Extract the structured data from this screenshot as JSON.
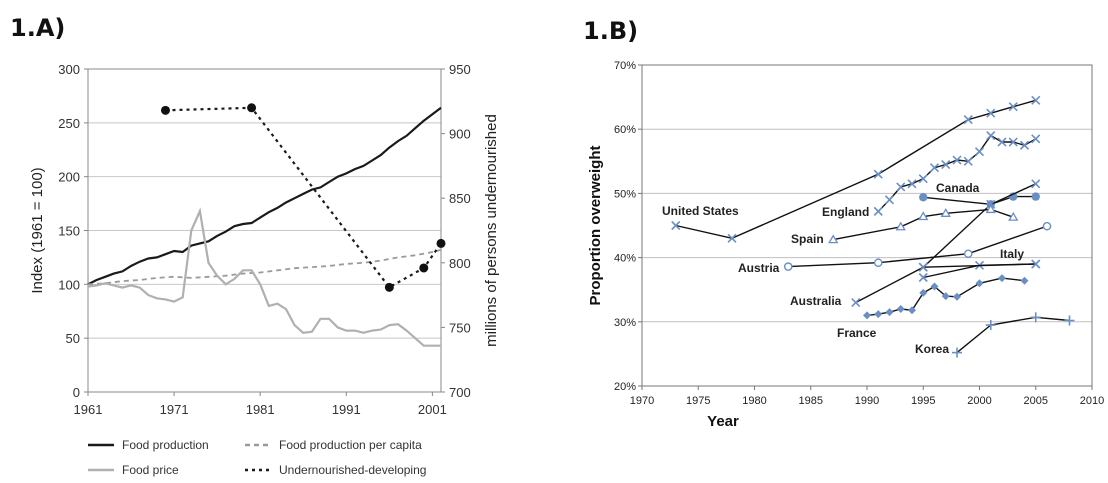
{
  "panels": {
    "a_label": "1.A)",
    "b_label": "1.B)"
  },
  "chart_data": [
    {
      "panel": "1.A)",
      "type": "line",
      "title": "",
      "xlabel": "",
      "ylabel": "Index (1961 = 100)",
      "ylabel_right": "millions of persons undernourished",
      "xlim": [
        1961,
        2002
      ],
      "ylim": [
        0,
        300
      ],
      "ylim_right": [
        700,
        950
      ],
      "x_ticks": [
        "1961",
        "1971",
        "1981",
        "1991",
        "2001"
      ],
      "y_ticks": [
        "0",
        "50",
        "100",
        "150",
        "200",
        "250",
        "300"
      ],
      "y_ticks_right": [
        "700",
        "750",
        "800",
        "850",
        "900",
        "950"
      ],
      "grid": "horizontal",
      "legend_position": "bottom",
      "series": [
        {
          "name": "Food production",
          "axis": "left",
          "style": "solid",
          "color": "#1a1a1a",
          "points": [
            [
              1961,
              100
            ],
            [
              1962,
              104
            ],
            [
              1963,
              107
            ],
            [
              1964,
              110
            ],
            [
              1965,
              112
            ],
            [
              1966,
              117
            ],
            [
              1967,
              121
            ],
            [
              1968,
              124
            ],
            [
              1969,
              125
            ],
            [
              1970,
              128
            ],
            [
              1971,
              131
            ],
            [
              1972,
              130
            ],
            [
              1973,
              136
            ],
            [
              1974,
              138
            ],
            [
              1975,
              140
            ],
            [
              1976,
              145
            ],
            [
              1977,
              149
            ],
            [
              1978,
              154
            ],
            [
              1979,
              156
            ],
            [
              1980,
              157
            ],
            [
              1981,
              162
            ],
            [
              1982,
              167
            ],
            [
              1983,
              171
            ],
            [
              1984,
              176
            ],
            [
              1985,
              180
            ],
            [
              1986,
              184
            ],
            [
              1987,
              188
            ],
            [
              1988,
              190
            ],
            [
              1989,
              195
            ],
            [
              1990,
              200
            ],
            [
              1991,
              203
            ],
            [
              1992,
              207
            ],
            [
              1993,
              210
            ],
            [
              1994,
              215
            ],
            [
              1995,
              220
            ],
            [
              1996,
              227
            ],
            [
              1997,
              233
            ],
            [
              1998,
              238
            ],
            [
              1999,
              245
            ],
            [
              2000,
              252
            ],
            [
              2001,
              258
            ],
            [
              2002,
              264
            ]
          ]
        },
        {
          "name": "Food production per capita",
          "axis": "left",
          "style": "dashed",
          "color": "#9a9a9a",
          "points": [
            [
              1961,
              100
            ],
            [
              1963,
              101
            ],
            [
              1965,
              103
            ],
            [
              1967,
              104
            ],
            [
              1969,
              106
            ],
            [
              1971,
              107
            ],
            [
              1973,
              106
            ],
            [
              1975,
              107
            ],
            [
              1977,
              108
            ],
            [
              1979,
              110
            ],
            [
              1981,
              111
            ],
            [
              1983,
              113
            ],
            [
              1985,
              115
            ],
            [
              1987,
              116
            ],
            [
              1989,
              117
            ],
            [
              1991,
              119
            ],
            [
              1993,
              120
            ],
            [
              1995,
              122
            ],
            [
              1997,
              125
            ],
            [
              1999,
              127
            ],
            [
              2001,
              130
            ],
            [
              2002,
              132
            ]
          ]
        },
        {
          "name": "Food price",
          "axis": "left",
          "style": "solid",
          "color": "#b0b0b0",
          "points": [
            [
              1961,
              98
            ],
            [
              1962,
              99
            ],
            [
              1963,
              101
            ],
            [
              1964,
              99
            ],
            [
              1965,
              97
            ],
            [
              1966,
              99
            ],
            [
              1967,
              97
            ],
            [
              1968,
              90
            ],
            [
              1969,
              87
            ],
            [
              1970,
              86
            ],
            [
              1971,
              84
            ],
            [
              1972,
              88
            ],
            [
              1973,
              150
            ],
            [
              1974,
              168
            ],
            [
              1975,
              120
            ],
            [
              1976,
              108
            ],
            [
              1977,
              100
            ],
            [
              1978,
              105
            ],
            [
              1979,
              113
            ],
            [
              1980,
              113
            ],
            [
              1981,
              100
            ],
            [
              1982,
              80
            ],
            [
              1983,
              82
            ],
            [
              1984,
              77
            ],
            [
              1985,
              62
            ],
            [
              1986,
              55
            ],
            [
              1987,
              56
            ],
            [
              1988,
              68
            ],
            [
              1989,
              68
            ],
            [
              1990,
              60
            ],
            [
              1991,
              57
            ],
            [
              1992,
              57
            ],
            [
              1993,
              55
            ],
            [
              1994,
              57
            ],
            [
              1995,
              58
            ],
            [
              1996,
              62
            ],
            [
              1997,
              63
            ],
            [
              1998,
              57
            ],
            [
              1999,
              50
            ],
            [
              2000,
              43
            ],
            [
              2001,
              43
            ],
            [
              2002,
              43
            ]
          ]
        },
        {
          "name": "Undernourished-developing",
          "axis": "right",
          "style": "dotted",
          "color": "#1a1a1a",
          "points": [
            [
              1970,
              918
            ],
            [
              1980,
              920
            ],
            [
              1996,
              781
            ],
            [
              2000,
              796
            ],
            [
              2002,
              815
            ]
          ]
        }
      ]
    },
    {
      "panel": "1.B)",
      "type": "line",
      "title": "",
      "xlabel": "Year",
      "ylabel": "Proportion overweight",
      "xlim": [
        1970,
        2010
      ],
      "ylim": [
        20,
        70
      ],
      "x_ticks": [
        "1970",
        "1975",
        "1980",
        "1985",
        "1990",
        "1995",
        "2000",
        "2005",
        "2010"
      ],
      "y_ticks": [
        "20%",
        "30%",
        "40%",
        "50%",
        "60%",
        "70%"
      ],
      "grid": "horizontal",
      "legend_position": "none",
      "country_labels": [
        {
          "text": "United States",
          "series": "United States"
        },
        {
          "text": "Canada",
          "series": "Canada"
        },
        {
          "text": "England",
          "series": "England"
        },
        {
          "text": "Spain",
          "series": "Spain"
        },
        {
          "text": "Italy",
          "series": "Italy"
        },
        {
          "text": "Austria",
          "series": "Austria"
        },
        {
          "text": "Australia",
          "series": "Australia"
        },
        {
          "text": "France",
          "series": "France"
        },
        {
          "text": "Korea",
          "series": "Korea"
        }
      ],
      "series": [
        {
          "name": "United States",
          "marker": "x",
          "points": [
            [
              1973,
              45
            ],
            [
              1978,
              43
            ],
            [
              1991,
              53
            ],
            [
              1999,
              61.5
            ],
            [
              2001,
              62.5
            ],
            [
              2003,
              63.5
            ],
            [
              2005,
              64.5
            ]
          ]
        },
        {
          "name": "England",
          "marker": "x",
          "points": [
            [
              1991,
              47.2
            ],
            [
              1992,
              49
            ],
            [
              1993,
              51
            ],
            [
              1994,
              51.5
            ],
            [
              1995,
              52.3
            ],
            [
              1996,
              54
            ],
            [
              1997,
              54.5
            ],
            [
              1998,
              55.2
            ],
            [
              1999,
              55
            ],
            [
              2000,
              56.5
            ],
            [
              2001,
              59
            ],
            [
              2002,
              58
            ],
            [
              2003,
              58
            ],
            [
              2004,
              57.5
            ],
            [
              2005,
              58.5
            ]
          ]
        },
        {
          "name": "Canada",
          "marker": "circle",
          "points": [
            [
              1995,
              49.4
            ],
            [
              2001,
              48.3
            ],
            [
              2003,
              49.5
            ],
            [
              2005,
              49.5
            ]
          ]
        },
        {
          "name": "Canada",
          "marker": "x",
          "points": [
            [
              1995,
              38.5
            ],
            [
              2001,
              48.3
            ],
            [
              2005,
              51.5
            ]
          ]
        },
        {
          "name": "Spain",
          "marker": "triangle",
          "points": [
            [
              1987,
              42.8
            ],
            [
              1993,
              44.8
            ],
            [
              1995,
              46.4
            ],
            [
              1997,
              46.9
            ],
            [
              2001,
              47.5
            ],
            [
              2003,
              46.3
            ]
          ]
        },
        {
          "name": "Italy",
          "marker": "x",
          "points": [
            [
              1995,
              36.9
            ],
            [
              2000,
              38.8
            ],
            [
              2005,
              39
            ]
          ]
        },
        {
          "name": "Austria",
          "marker": "open-circle",
          "points": [
            [
              1983,
              38.6
            ],
            [
              1991,
              39.2
            ],
            [
              1999,
              40.6
            ],
            [
              2006,
              44.9
            ]
          ]
        },
        {
          "name": "Australia",
          "marker": "x",
          "points": [
            [
              1989,
              33
            ],
            [
              1995,
              38.5
            ],
            [
              2005,
              39
            ]
          ]
        },
        {
          "name": "France",
          "marker": "diamond",
          "points": [
            [
              1990,
              31
            ],
            [
              1991,
              31.2
            ],
            [
              1992,
              31.5
            ],
            [
              1993,
              32
            ],
            [
              1994,
              31.8
            ],
            [
              1995,
              34.5
            ],
            [
              1996,
              35.5
            ],
            [
              1997,
              34
            ],
            [
              1998,
              33.9
            ],
            [
              2000,
              36
            ],
            [
              2002,
              36.8
            ],
            [
              2004,
              36.4
            ]
          ]
        },
        {
          "name": "Korea",
          "marker": "plus",
          "points": [
            [
              1998,
              25.2
            ],
            [
              2001,
              29.5
            ],
            [
              2005,
              30.7
            ],
            [
              2008,
              30.2
            ]
          ]
        }
      ]
    }
  ]
}
